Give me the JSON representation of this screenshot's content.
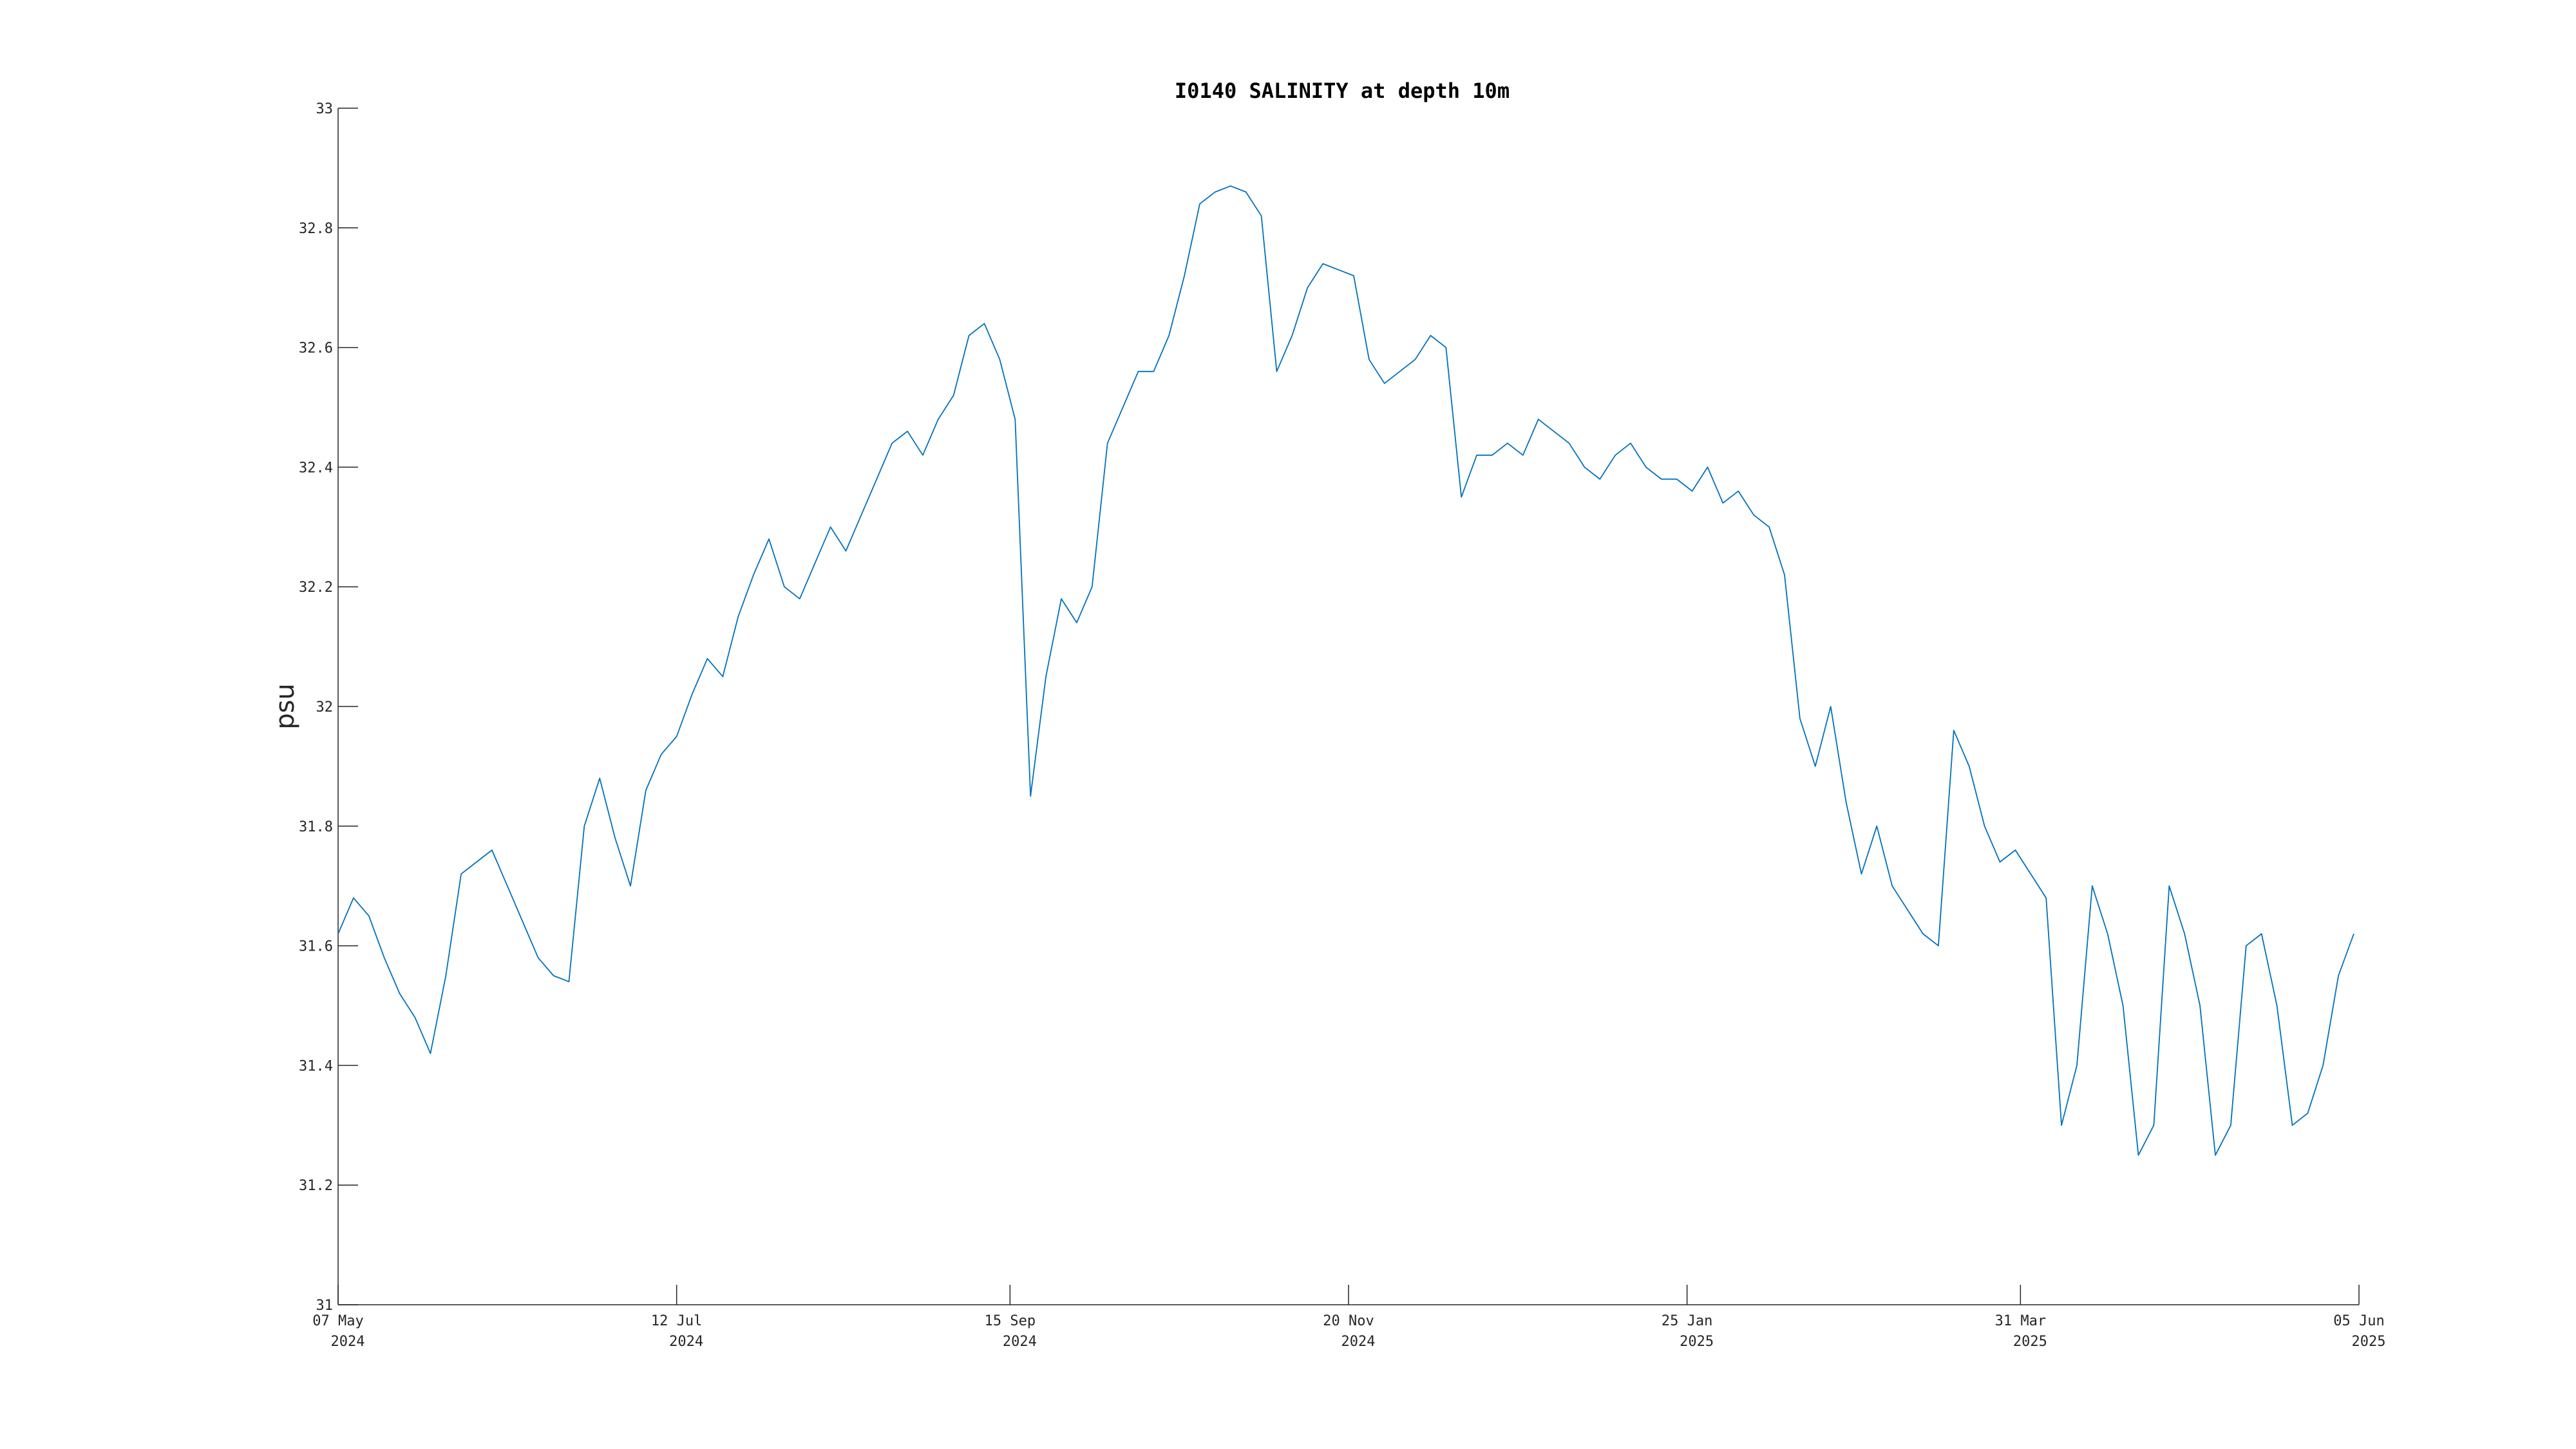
{
  "chart_data": {
    "type": "line",
    "title": "I0140 SALINITY at depth 10m",
    "xlabel": "",
    "ylabel": "psu",
    "ylim": [
      31,
      33
    ],
    "yticks": [
      31,
      31.2,
      31.4,
      31.6,
      31.8,
      32,
      32.2,
      32.4,
      32.6,
      32.8,
      33
    ],
    "xlim": [
      "2024-05-07",
      "2025-06-05"
    ],
    "xticks": [
      {
        "date": "2024-05-07",
        "label_top": "07 May",
        "label_bottom": "2024"
      },
      {
        "date": "2024-07-12",
        "label_top": "12 Jul",
        "label_bottom": "2024"
      },
      {
        "date": "2024-09-15",
        "label_top": "15 Sep",
        "label_bottom": "2024"
      },
      {
        "date": "2024-11-20",
        "label_top": "20 Nov",
        "label_bottom": "2024"
      },
      {
        "date": "2025-01-25",
        "label_top": "25 Jan",
        "label_bottom": "2025"
      },
      {
        "date": "2025-03-31",
        "label_top": "31 Mar",
        "label_bottom": "2025"
      },
      {
        "date": "2025-06-05",
        "label_top": "05 Jun",
        "label_bottom": "2025"
      }
    ],
    "grid": false,
    "colors": {
      "series": "#0072BD",
      "axis": "#262626"
    },
    "series": [
      {
        "x": [
          "2024-05-07",
          "2024-05-10",
          "2024-05-13",
          "2024-05-16",
          "2024-05-19",
          "2024-05-22",
          "2024-05-25",
          "2024-05-28",
          "2024-05-31",
          "2024-06-03",
          "2024-06-06",
          "2024-06-09",
          "2024-06-12",
          "2024-06-15",
          "2024-06-18",
          "2024-06-21",
          "2024-06-24",
          "2024-06-27",
          "2024-06-30",
          "2024-07-03",
          "2024-07-06",
          "2024-07-09",
          "2024-07-12",
          "2024-07-15",
          "2024-07-18",
          "2024-07-21",
          "2024-07-24",
          "2024-07-27",
          "2024-07-30",
          "2024-08-02",
          "2024-08-05",
          "2024-08-08",
          "2024-08-11",
          "2024-08-14",
          "2024-08-17",
          "2024-08-20",
          "2024-08-23",
          "2024-08-26",
          "2024-08-29",
          "2024-09-01",
          "2024-09-04",
          "2024-09-07",
          "2024-09-10",
          "2024-09-13",
          "2024-09-16",
          "2024-09-19",
          "2024-09-22",
          "2024-09-25",
          "2024-09-28",
          "2024-10-01",
          "2024-10-04",
          "2024-10-07",
          "2024-10-10",
          "2024-10-13",
          "2024-10-16",
          "2024-10-19",
          "2024-10-22",
          "2024-10-25",
          "2024-10-28",
          "2024-10-31",
          "2024-11-03",
          "2024-11-06",
          "2024-11-09",
          "2024-11-12",
          "2024-11-15",
          "2024-11-18",
          "2024-11-21",
          "2024-11-24",
          "2024-11-27",
          "2024-11-30",
          "2024-12-03",
          "2024-12-06",
          "2024-12-09",
          "2024-12-12",
          "2024-12-15",
          "2024-12-18",
          "2024-12-21",
          "2024-12-24",
          "2024-12-27",
          "2024-12-30",
          "2025-01-02",
          "2025-01-05",
          "2025-01-08",
          "2025-01-11",
          "2025-01-14",
          "2025-01-17",
          "2025-01-20",
          "2025-01-23",
          "2025-01-26",
          "2025-01-29",
          "2025-02-01",
          "2025-02-04",
          "2025-02-07",
          "2025-02-10",
          "2025-02-13",
          "2025-02-16",
          "2025-02-19",
          "2025-02-22",
          "2025-02-25",
          "2025-02-28",
          "2025-03-03",
          "2025-03-06",
          "2025-03-09",
          "2025-03-12",
          "2025-03-15",
          "2025-03-18",
          "2025-03-21",
          "2025-03-24",
          "2025-03-27",
          "2025-03-30",
          "2025-04-02",
          "2025-04-05",
          "2025-04-08",
          "2025-04-11",
          "2025-04-14",
          "2025-04-17",
          "2025-04-20",
          "2025-04-23",
          "2025-04-26",
          "2025-04-29",
          "2025-05-02",
          "2025-05-05",
          "2025-05-08",
          "2025-05-11",
          "2025-05-14",
          "2025-05-17",
          "2025-05-20",
          "2025-05-23",
          "2025-05-26",
          "2025-05-29",
          "2025-06-01",
          "2025-06-04"
        ],
        "values": [
          31.62,
          31.68,
          31.65,
          31.58,
          31.52,
          31.48,
          31.42,
          31.55,
          31.72,
          31.74,
          31.76,
          31.7,
          31.64,
          31.58,
          31.55,
          31.54,
          31.8,
          31.88,
          31.78,
          31.7,
          31.86,
          31.92,
          31.95,
          32.02,
          32.08,
          32.05,
          32.15,
          32.22,
          32.28,
          32.2,
          32.18,
          32.24,
          32.3,
          32.26,
          32.32,
          32.38,
          32.44,
          32.46,
          32.42,
          32.48,
          32.52,
          32.62,
          32.64,
          32.58,
          32.48,
          31.85,
          32.05,
          32.18,
          32.14,
          32.2,
          32.44,
          32.5,
          32.56,
          32.56,
          32.62,
          32.72,
          32.84,
          32.86,
          32.87,
          32.86,
          32.82,
          32.56,
          32.62,
          32.7,
          32.74,
          32.73,
          32.72,
          32.58,
          32.54,
          32.56,
          32.58,
          32.62,
          32.6,
          32.35,
          32.42,
          32.42,
          32.44,
          32.42,
          32.48,
          32.46,
          32.44,
          32.4,
          32.38,
          32.42,
          32.44,
          32.4,
          32.38,
          32.38,
          32.36,
          32.4,
          32.34,
          32.36,
          32.32,
          32.3,
          32.22,
          31.98,
          31.9,
          32.0,
          31.84,
          31.72,
          31.8,
          31.7,
          31.66,
          31.62,
          31.6,
          31.96,
          31.9,
          31.8,
          31.74,
          31.76,
          31.72,
          31.68,
          31.3,
          31.4,
          31.7,
          31.62,
          31.5,
          31.25,
          31.3,
          31.7,
          31.62,
          31.5,
          31.25,
          31.3,
          31.6,
          31.62,
          31.5,
          31.3,
          31.32,
          31.4,
          31.55,
          31.62
        ]
      }
    ]
  }
}
